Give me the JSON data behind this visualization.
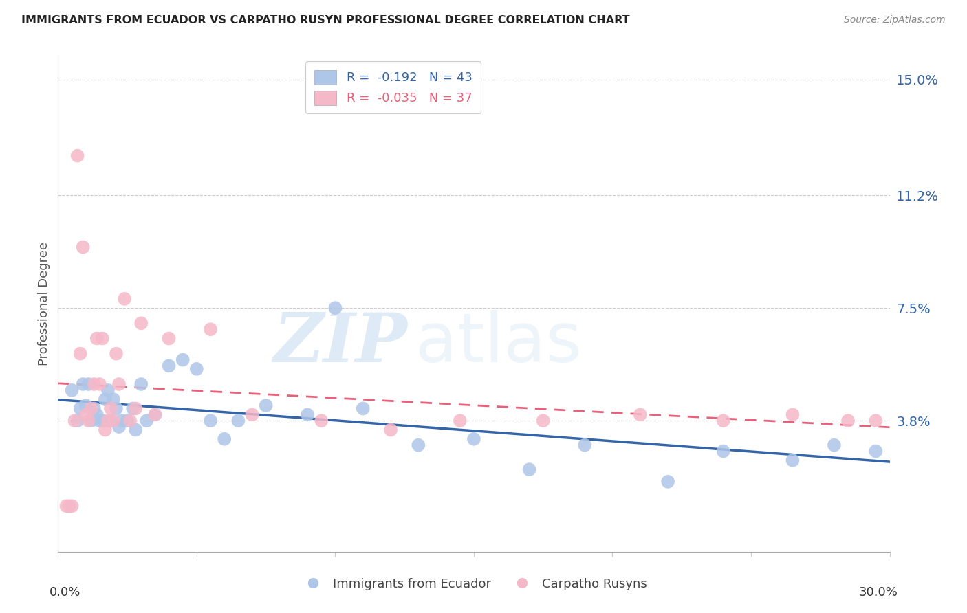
{
  "title": "IMMIGRANTS FROM ECUADOR VS CARPATHO RUSYN PROFESSIONAL DEGREE CORRELATION CHART",
  "source": "Source: ZipAtlas.com",
  "ylabel": "Professional Degree",
  "xlim": [
    0.0,
    0.3
  ],
  "ylim": [
    -0.005,
    0.158
  ],
  "ytick_vals": [
    0.038,
    0.075,
    0.112,
    0.15
  ],
  "ytick_labels": [
    "3.8%",
    "7.5%",
    "11.2%",
    "15.0%"
  ],
  "legend_r1": "R =  -0.192   N = 43",
  "legend_r2": "R =  -0.035   N = 37",
  "watermark_zip": "ZIP",
  "watermark_atlas": "atlas",
  "series1_color": "#aec6e8",
  "series2_color": "#f5b8c8",
  "trendline1_color": "#3465a8",
  "trendline2_color": "#e8607a",
  "ecuador_x": [
    0.005,
    0.007,
    0.008,
    0.009,
    0.01,
    0.011,
    0.012,
    0.013,
    0.014,
    0.015,
    0.016,
    0.017,
    0.018,
    0.019,
    0.02,
    0.021,
    0.022,
    0.023,
    0.025,
    0.027,
    0.028,
    0.03,
    0.032,
    0.035,
    0.04,
    0.045,
    0.05,
    0.055,
    0.06,
    0.065,
    0.075,
    0.09,
    0.1,
    0.11,
    0.13,
    0.15,
    0.17,
    0.19,
    0.22,
    0.24,
    0.265,
    0.28,
    0.295
  ],
  "ecuador_y": [
    0.048,
    0.038,
    0.042,
    0.05,
    0.043,
    0.05,
    0.038,
    0.042,
    0.04,
    0.038,
    0.038,
    0.045,
    0.048,
    0.038,
    0.045,
    0.042,
    0.036,
    0.038,
    0.038,
    0.042,
    0.035,
    0.05,
    0.038,
    0.04,
    0.056,
    0.058,
    0.055,
    0.038,
    0.032,
    0.038,
    0.043,
    0.04,
    0.075,
    0.042,
    0.03,
    0.032,
    0.022,
    0.03,
    0.018,
    0.028,
    0.025,
    0.03,
    0.028
  ],
  "rusyn_x": [
    0.003,
    0.004,
    0.005,
    0.006,
    0.007,
    0.008,
    0.009,
    0.01,
    0.011,
    0.012,
    0.013,
    0.014,
    0.015,
    0.016,
    0.017,
    0.018,
    0.019,
    0.02,
    0.021,
    0.022,
    0.024,
    0.026,
    0.028,
    0.03,
    0.035,
    0.04,
    0.055,
    0.07,
    0.095,
    0.12,
    0.145,
    0.175,
    0.21,
    0.24,
    0.265,
    0.285,
    0.295
  ],
  "rusyn_y": [
    0.01,
    0.01,
    0.01,
    0.038,
    0.125,
    0.06,
    0.095,
    0.04,
    0.038,
    0.042,
    0.05,
    0.065,
    0.05,
    0.065,
    0.035,
    0.038,
    0.042,
    0.038,
    0.06,
    0.05,
    0.078,
    0.038,
    0.042,
    0.07,
    0.04,
    0.065,
    0.068,
    0.04,
    0.038,
    0.035,
    0.038,
    0.038,
    0.04,
    0.038,
    0.04,
    0.038,
    0.038
  ]
}
